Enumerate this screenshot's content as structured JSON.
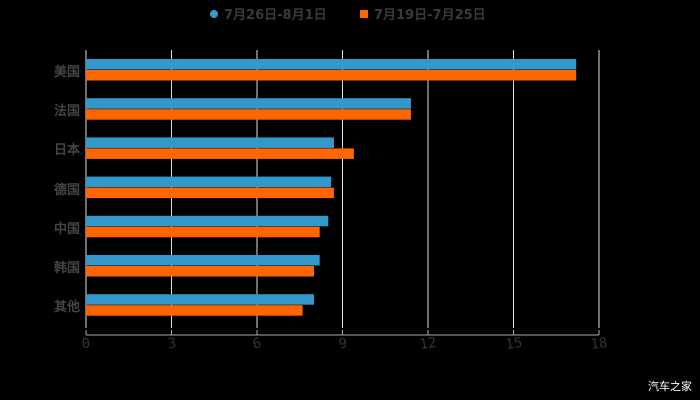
{
  "chart_data": {
    "type": "bar",
    "orientation": "horizontal",
    "title": "",
    "xlabel": "",
    "ylabel": "",
    "categories": [
      "美国",
      "法国",
      "日本",
      "德国",
      "中国",
      "韩国",
      "其他"
    ],
    "series": [
      {
        "name": "7月26日-8月1日",
        "color": "#3399cc",
        "values": [
          17.2,
          11.4,
          8.7,
          8.6,
          8.5,
          8.2,
          8.0
        ]
      },
      {
        "name": "7月19日-7月25日",
        "color": "#ff6600",
        "values": [
          17.2,
          11.4,
          9.4,
          8.7,
          8.2,
          8.0,
          7.6
        ]
      }
    ],
    "xlim": [
      0,
      18
    ],
    "xticks": [
      0,
      3,
      6,
      9,
      12,
      15,
      18
    ],
    "grid": true,
    "legend_position": "top"
  },
  "legend": {
    "items": [
      {
        "label": "7月26日-8月1日",
        "color": "#3399cc",
        "shape": "circle"
      },
      {
        "label": "7月19日-7月25日",
        "color": "#ff6600",
        "shape": "square"
      }
    ]
  },
  "watermark": "汽车之家"
}
